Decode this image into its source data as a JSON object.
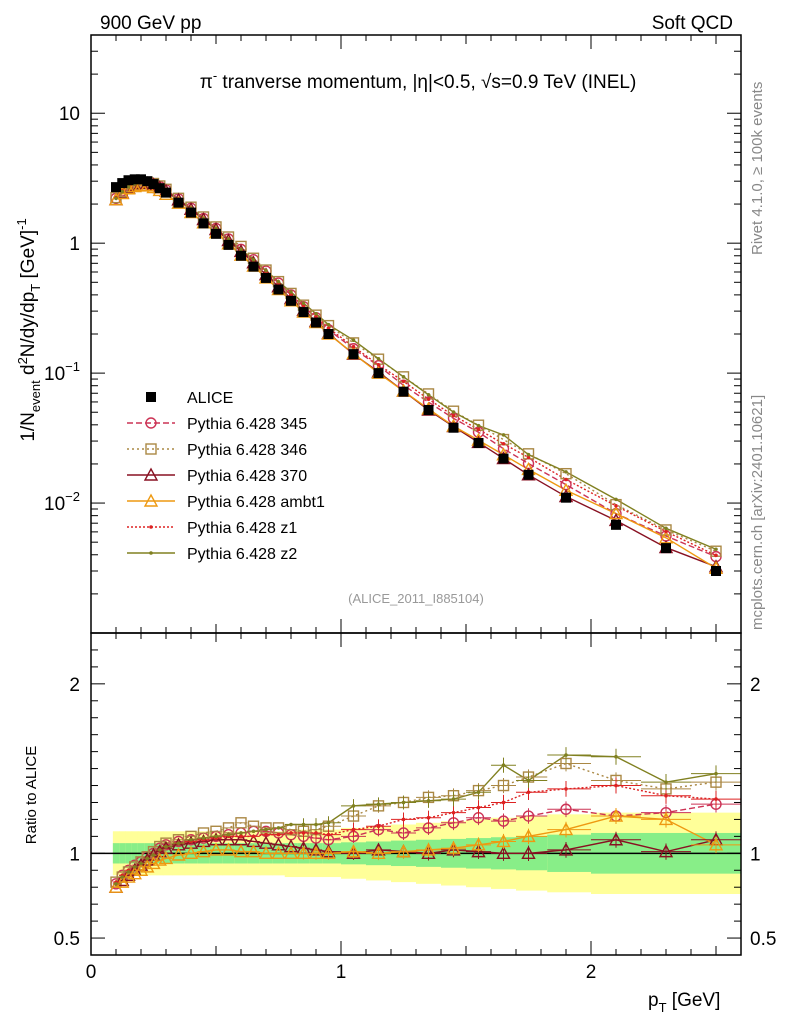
{
  "header": {
    "left": "900 GeV pp",
    "right": "Soft QCD",
    "title_prefix": "π",
    "title_sup": "-",
    "title_rest": " tranverse momentum, |η|<0.5, √s=0.9 TeV (INEL)"
  },
  "side_texts": {
    "rivet": "Rivet 4.1.0, ≥ 100k events",
    "mcplots": "mcplots.cern.ch [arXiv:2401.10621]"
  },
  "analysis_ref": "(ALICE_2011_I885104)",
  "chart_data": {
    "type": "scatter",
    "x_label": "p_T [GeV]",
    "y_label": "1/N_event d²N/dy/dp_T [GeV]⁻¹",
    "ratio_label": "Ratio to ALICE",
    "x_range": [
      0,
      2.6
    ],
    "y_range_log": [
      0.001,
      40
    ],
    "ratio_range": [
      0.4,
      2.3
    ],
    "x_ticks": [
      "0",
      "1",
      "2"
    ],
    "y_ticks": [
      {
        "v": 10,
        "base": "10",
        "exp": ""
      },
      {
        "v": 1,
        "base": "1",
        "exp": ""
      },
      {
        "v": 0.1,
        "base": "10",
        "exp": "−1"
      },
      {
        "v": 0.01,
        "base": "10",
        "exp": "−2"
      }
    ],
    "ratio_ticks": [
      {
        "v": 2,
        "label": "2"
      },
      {
        "v": 1,
        "label": "1"
      },
      {
        "v": 0.5,
        "label": "0.5"
      }
    ],
    "pt": [
      0.1,
      0.125,
      0.15,
      0.175,
      0.2,
      0.225,
      0.25,
      0.275,
      0.3,
      0.35,
      0.4,
      0.45,
      0.5,
      0.55,
      0.6,
      0.65,
      0.7,
      0.75,
      0.8,
      0.85,
      0.9,
      0.95,
      1.05,
      1.15,
      1.25,
      1.35,
      1.45,
      1.55,
      1.65,
      1.75,
      1.9,
      2.1,
      2.3,
      2.5
    ],
    "alice": [
      2.7,
      2.9,
      3.05,
      3.1,
      3.1,
      3.0,
      2.85,
      2.65,
      2.45,
      2.05,
      1.72,
      1.42,
      1.18,
      0.97,
      0.8,
      0.66,
      0.54,
      0.44,
      0.36,
      0.295,
      0.245,
      0.2,
      0.14,
      0.1,
      0.072,
      0.052,
      0.038,
      0.029,
      0.022,
      0.0165,
      0.011,
      0.0068,
      0.0045,
      0.003
    ],
    "alice_err_band": [
      0.06,
      0.06,
      0.06,
      0.06,
      0.06,
      0.06,
      0.06,
      0.06,
      0.06,
      0.06,
      0.06,
      0.06,
      0.06,
      0.06,
      0.06,
      0.06,
      0.06,
      0.06,
      0.06,
      0.06,
      0.06,
      0.06,
      0.065,
      0.07,
      0.075,
      0.08,
      0.085,
      0.09,
      0.095,
      0.1,
      0.11,
      0.12,
      0.12,
      0.12
    ],
    "alice_sys_band": [
      0.13,
      0.13,
      0.13,
      0.13,
      0.13,
      0.13,
      0.13,
      0.13,
      0.13,
      0.13,
      0.13,
      0.13,
      0.13,
      0.13,
      0.13,
      0.13,
      0.13,
      0.13,
      0.14,
      0.14,
      0.14,
      0.14,
      0.15,
      0.16,
      0.17,
      0.18,
      0.19,
      0.2,
      0.21,
      0.22,
      0.23,
      0.24,
      0.24,
      0.24
    ],
    "series": [
      {
        "name": "Pythia 6.428 345",
        "color": "#cc3355",
        "marker": "circle",
        "dash": "6,3",
        "ratio": [
          0.82,
          0.87,
          0.9,
          0.93,
          0.95,
          0.98,
          1.0,
          1.03,
          1.05,
          1.07,
          1.08,
          1.09,
          1.1,
          1.11,
          1.12,
          1.13,
          1.13,
          1.12,
          1.11,
          1.1,
          1.09,
          1.08,
          1.1,
          1.14,
          1.12,
          1.15,
          1.18,
          1.21,
          1.19,
          1.22,
          1.26,
          1.22,
          1.24,
          1.29
        ]
      },
      {
        "name": "Pythia 6.428 346",
        "color": "#aa8844",
        "marker": "square",
        "dash": "2,3",
        "ratio": [
          0.83,
          0.86,
          0.89,
          0.92,
          0.95,
          0.98,
          1.01,
          1.04,
          1.06,
          1.08,
          1.1,
          1.12,
          1.13,
          1.15,
          1.18,
          1.16,
          1.15,
          1.15,
          1.14,
          1.13,
          1.14,
          1.16,
          1.22,
          1.28,
          1.3,
          1.33,
          1.34,
          1.37,
          1.4,
          1.45,
          1.53,
          1.43,
          1.38,
          1.42
        ]
      },
      {
        "name": "Pythia 6.428 370",
        "color": "#881122",
        "marker": "triangle",
        "dash": "",
        "ratio": [
          0.8,
          0.84,
          0.87,
          0.9,
          0.93,
          0.96,
          0.99,
          1.01,
          1.03,
          1.05,
          1.06,
          1.07,
          1.08,
          1.08,
          1.08,
          1.07,
          1.06,
          1.05,
          1.04,
          1.03,
          1.02,
          1.01,
          1.0,
          1.02,
          1.01,
          1.0,
          1.02,
          1.01,
          1.0,
          1.0,
          1.02,
          1.08,
          1.01,
          1.08
        ]
      },
      {
        "name": "Pythia 6.428 ambt1",
        "color": "#ee9911",
        "marker": "triangle",
        "dash": "",
        "ratio": [
          0.8,
          0.83,
          0.86,
          0.88,
          0.9,
          0.92,
          0.94,
          0.96,
          0.97,
          0.99,
          1.0,
          1.01,
          1.02,
          1.02,
          1.01,
          1.01,
          1.0,
          1.0,
          1.0,
          1.0,
          1.0,
          1.0,
          1.01,
          1.0,
          1.01,
          1.02,
          1.03,
          1.05,
          1.07,
          1.1,
          1.14,
          1.22,
          1.2,
          1.05
        ]
      },
      {
        "name": "Pythia 6.428 z1",
        "color": "#dd2222",
        "marker": "dot",
        "dash": "2,2",
        "ratio": [
          0.83,
          0.87,
          0.9,
          0.92,
          0.94,
          0.97,
          0.99,
          1.02,
          1.04,
          1.06,
          1.07,
          1.08,
          1.09,
          1.1,
          1.1,
          1.1,
          1.11,
          1.11,
          1.12,
          1.12,
          1.12,
          1.11,
          1.14,
          1.16,
          1.2,
          1.21,
          1.24,
          1.27,
          1.3,
          1.36,
          1.38,
          1.4,
          1.34,
          1.32
        ]
      },
      {
        "name": "Pythia 6.428 z2",
        "color": "#808020",
        "marker": "dot",
        "dash": "",
        "ratio": [
          0.82,
          0.86,
          0.89,
          0.92,
          0.94,
          0.97,
          0.99,
          1.02,
          1.04,
          1.06,
          1.08,
          1.09,
          1.1,
          1.11,
          1.12,
          1.13,
          1.14,
          1.15,
          1.17,
          1.17,
          1.17,
          1.18,
          1.28,
          1.29,
          1.3,
          1.31,
          1.32,
          1.36,
          1.52,
          1.43,
          1.58,
          1.57,
          1.42,
          1.47
        ]
      }
    ]
  }
}
